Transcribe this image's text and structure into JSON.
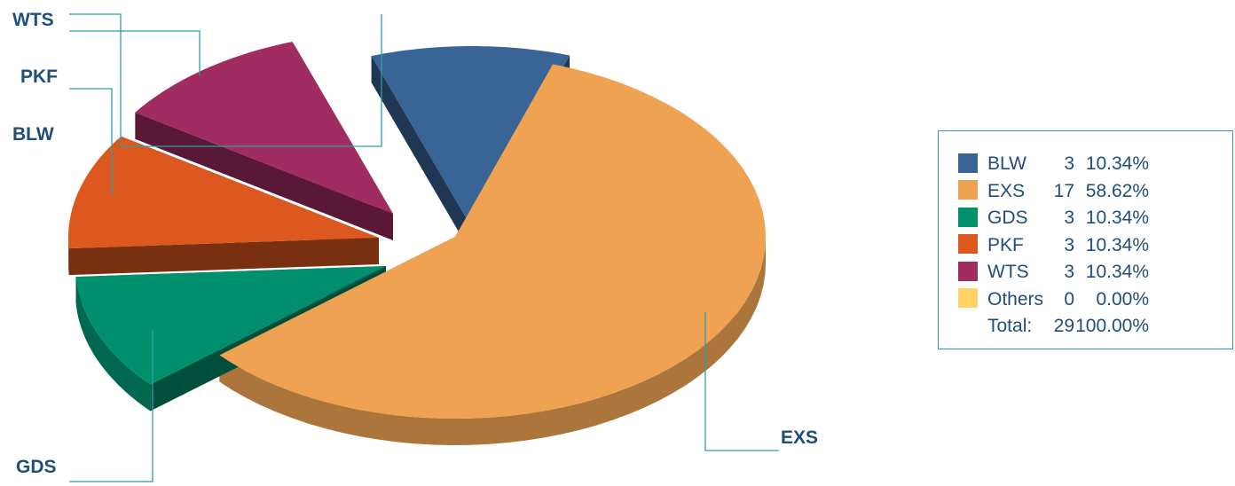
{
  "chart_data": {
    "type": "pie",
    "style": "3d-exploded",
    "categories": [
      "BLW",
      "EXS",
      "GDS",
      "PKF",
      "WTS",
      "Others"
    ],
    "values": [
      3,
      17,
      3,
      3,
      3,
      0
    ],
    "percentages": [
      "10.34%",
      "58.62%",
      "10.34%",
      "10.34%",
      "10.34%",
      "0.00%"
    ],
    "colors": [
      "#386496",
      "#eea252",
      "#00906e",
      "#dc581e",
      "#a12c61",
      "#ffd466"
    ],
    "callout_labels": [
      "WTS",
      "PKF",
      "BLW",
      "GDS",
      "EXS"
    ],
    "legend": {
      "placement": "right",
      "rows": [
        {
          "label": "BLW",
          "count": "3",
          "percent": "10.34%",
          "color": "#386496"
        },
        {
          "label": "EXS",
          "count": "17",
          "percent": "58.62%",
          "color": "#eea252"
        },
        {
          "label": "GDS",
          "count": "3",
          "percent": "10.34%",
          "color": "#00906e"
        },
        {
          "label": "PKF",
          "count": "3",
          "percent": "10.34%",
          "color": "#dc581e"
        },
        {
          "label": "WTS",
          "count": "3",
          "percent": "10.34%",
          "color": "#a12c61"
        },
        {
          "label": "Others",
          "count": "0",
          "percent": "0.00%",
          "color": "#ffd466"
        }
      ],
      "total_label": "Total:",
      "total_count": "29",
      "total_percent": "100.00%"
    }
  }
}
